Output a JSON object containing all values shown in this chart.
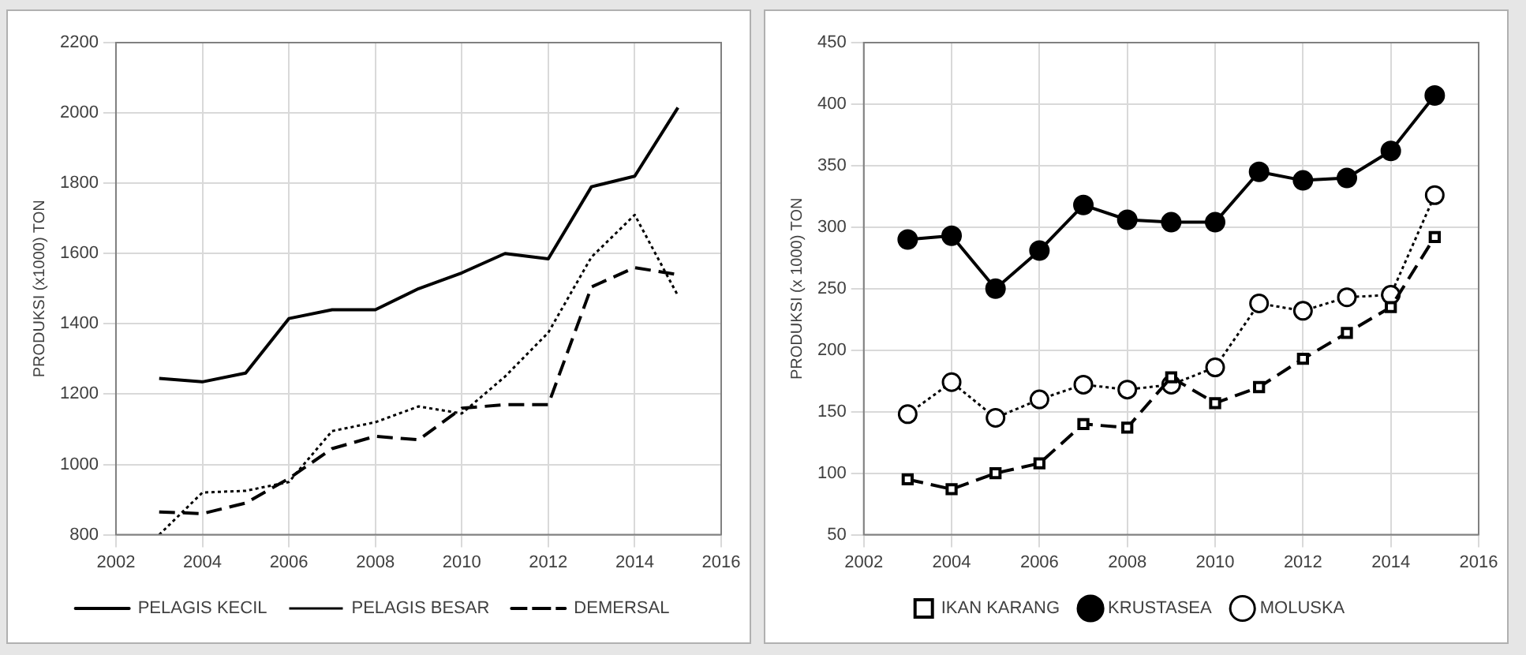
{
  "chart_data": [
    {
      "type": "line",
      "ylabel": "PRODUKSI (x1000) TON",
      "x": [
        2003,
        2004,
        2005,
        2006,
        2007,
        2008,
        2009,
        2010,
        2011,
        2012,
        2013,
        2014,
        2015
      ],
      "xlim": [
        2002,
        2016
      ],
      "xticks": [
        2002,
        2004,
        2006,
        2008,
        2010,
        2012,
        2014,
        2016
      ],
      "ylim": [
        800,
        2200
      ],
      "yticks": [
        800,
        1000,
        1200,
        1400,
        1600,
        1800,
        2000,
        2200
      ],
      "grid": true,
      "legend": "bottom",
      "marker": "none",
      "series": [
        {
          "name": "PELAGIS KECIL",
          "color": "#000000",
          "line_style": "solid",
          "values": [
            1245,
            1235,
            1260,
            1415,
            1440,
            1440,
            1500,
            1545,
            1600,
            1585,
            1790,
            1820,
            2015
          ]
        },
        {
          "name": "PELAGIS BESAR",
          "color": "#000000",
          "line_style": "dotted",
          "values": [
            800,
            920,
            925,
            950,
            1095,
            1120,
            1165,
            1145,
            1250,
            1375,
            1590,
            1710,
            1480
          ]
        },
        {
          "name": "DEMERSAL",
          "color": "#000000",
          "line_style": "dashed",
          "values": [
            865,
            860,
            890,
            960,
            1045,
            1080,
            1070,
            1160,
            1170,
            1170,
            1505,
            1560,
            1540
          ]
        }
      ]
    },
    {
      "type": "line",
      "ylabel": "PRODUKSI (x 1000) TON",
      "x": [
        2003,
        2004,
        2005,
        2006,
        2007,
        2008,
        2009,
        2010,
        2011,
        2012,
        2013,
        2014,
        2015
      ],
      "xlim": [
        2002,
        2016
      ],
      "xticks": [
        2002,
        2004,
        2006,
        2008,
        2010,
        2012,
        2014,
        2016
      ],
      "ylim": [
        50,
        450
      ],
      "yticks": [
        50,
        100,
        150,
        200,
        250,
        300,
        350,
        400,
        450
      ],
      "grid": true,
      "legend": "bottom",
      "series": [
        {
          "name": "IKAN KARANG",
          "color": "#000000",
          "line_style": "dashed",
          "marker": "square",
          "values": [
            95,
            87,
            100,
            108,
            140,
            137,
            178,
            157,
            170,
            193,
            214,
            235,
            292
          ]
        },
        {
          "name": "KRUSTASEA",
          "color": "#000000",
          "line_style": "solid",
          "marker": "circle",
          "values": [
            290,
            293,
            250,
            281,
            318,
            306,
            304,
            304,
            345,
            338,
            340,
            362,
            407
          ]
        },
        {
          "name": "MOLUSKA",
          "color": "#000000",
          "line_style": "dotted",
          "marker": "circle",
          "values": [
            148,
            174,
            145,
            160,
            172,
            168,
            172,
            186,
            238,
            232,
            243,
            245,
            326
          ]
        }
      ]
    }
  ]
}
